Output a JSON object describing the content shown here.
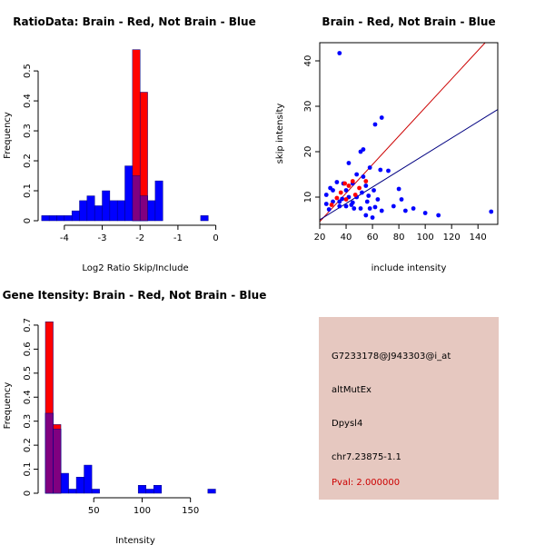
{
  "chart_data": [
    {
      "id": "ratio",
      "type": "bar",
      "title": "RatioData: Brain - Red, Not Brain - Blue",
      "xlabel": "Log2 Ratio Skip/Include",
      "ylabel": "Frequency",
      "xlim": [
        -4.5,
        0.25
      ],
      "ylim": [
        0,
        0.57
      ],
      "xticks": [
        -4,
        -3,
        -2,
        -1,
        0
      ],
      "yticks": [
        0,
        0.1,
        0.2,
        0.3,
        0.4,
        0.5
      ],
      "binwidth": 0.2,
      "series": [
        {
          "name": "Not Brain",
          "color": "#0000ff",
          "bins": [
            [
              -4.4,
              0.017
            ],
            [
              -4.2,
              0.017
            ],
            [
              -4.0,
              0.017
            ],
            [
              -3.8,
              0.017
            ],
            [
              -3.6,
              0.033
            ],
            [
              -3.4,
              0.067
            ],
            [
              -3.2,
              0.083
            ],
            [
              -3.0,
              0.05
            ],
            [
              -2.8,
              0.1
            ],
            [
              -2.6,
              0.067
            ],
            [
              -2.4,
              0.067
            ],
            [
              -2.2,
              0.183
            ],
            [
              -2.0,
              0.15
            ],
            [
              -1.8,
              0.083
            ],
            [
              -1.6,
              0.067
            ],
            [
              -1.4,
              0.133
            ],
            [
              -1.2,
              0.0
            ],
            [
              -1.0,
              0.0
            ],
            [
              -0.2,
              0.017
            ]
          ]
        },
        {
          "name": "Brain",
          "color": "#ff0000",
          "bins": [
            [
              -2.0,
              0.571
            ],
            [
              -1.8,
              0.429
            ]
          ]
        }
      ]
    },
    {
      "id": "scatter",
      "type": "scatter",
      "title": "Brain - Red, Not Brain - Blue",
      "xlabel": "include intensity",
      "ylabel": "skip intensity",
      "xlim": [
        20,
        155
      ],
      "ylim": [
        4,
        44
      ],
      "xticks": [
        20,
        40,
        60,
        80,
        100,
        120,
        140
      ],
      "yticks": [
        10,
        20,
        30,
        40
      ],
      "lines": [
        {
          "name": "Brain fit",
          "color": "#cc0000",
          "from": [
            20,
            4.6
          ],
          "to": [
            155,
            47
          ]
        },
        {
          "name": "Not Brain fit",
          "color": "#000080",
          "from": [
            20,
            5
          ],
          "to": [
            155,
            29.3
          ]
        }
      ],
      "series": [
        {
          "name": "Brain",
          "color": "#ff0000",
          "points": [
            [
              29,
              8.3
            ],
            [
              33,
              9.8
            ],
            [
              36,
              11
            ],
            [
              39,
              13
            ],
            [
              42,
              12.5
            ],
            [
              45,
              13.5
            ],
            [
              50,
              12
            ],
            [
              55,
              13.5
            ],
            [
              40,
              9.5
            ],
            [
              47,
              10.5
            ]
          ]
        },
        {
          "name": "Not Brain",
          "color": "#0000ff",
          "points": [
            [
              35,
              41.7
            ],
            [
              67,
              27.5
            ],
            [
              62,
              26
            ],
            [
              53,
              20.5
            ],
            [
              51,
              20
            ],
            [
              42,
              17.5
            ],
            [
              58,
              16.5
            ],
            [
              66,
              16
            ],
            [
              72,
              15.8
            ],
            [
              48,
              15
            ],
            [
              53,
              14.5
            ],
            [
              33,
              13.3
            ],
            [
              45,
              13
            ],
            [
              38,
              13
            ],
            [
              55,
              12.5
            ],
            [
              28,
              12
            ],
            [
              30,
              11.5
            ],
            [
              40,
              11.5
            ],
            [
              61,
              11.5
            ],
            [
              80,
              11.8
            ],
            [
              25,
              10.5
            ],
            [
              42,
              10
            ],
            [
              48,
              10
            ],
            [
              64,
              9.5
            ],
            [
              30,
              9
            ],
            [
              35,
              9
            ],
            [
              45,
              8.8
            ],
            [
              56,
              9
            ],
            [
              82,
              9.5
            ],
            [
              25,
              8.5
            ],
            [
              35,
              8
            ],
            [
              40,
              8
            ],
            [
              46,
              7.5
            ],
            [
              51,
              7.5
            ],
            [
              58,
              7.5
            ],
            [
              62,
              7.8
            ],
            [
              67,
              7
            ],
            [
              76,
              8
            ],
            [
              85,
              7
            ],
            [
              91,
              7.5
            ],
            [
              100,
              6.5
            ],
            [
              27,
              7.3
            ],
            [
              55,
              6
            ],
            [
              60,
              5.5
            ],
            [
              110,
              6
            ],
            [
              150,
              6.8
            ],
            [
              44,
              8.3
            ],
            [
              37,
              9.6
            ],
            [
              52,
              11
            ],
            [
              57,
              10.3
            ]
          ]
        }
      ]
    },
    {
      "id": "intensity",
      "type": "bar",
      "title": "Gene Itensity: Brain - Red, Not Brain - Blue",
      "xlabel": "Intensity",
      "ylabel": "Frequency",
      "xlim": [
        0,
        186
      ],
      "ylim": [
        0,
        0.73
      ],
      "xticks": [
        50,
        100,
        150
      ],
      "yticks": [
        0,
        0.1,
        0.2,
        0.3,
        0.4,
        0.5,
        0.6,
        0.7
      ],
      "binwidth": 8,
      "series": [
        {
          "name": "Not Brain",
          "color": "#0000ff",
          "bins": [
            [
              8,
              0.333
            ],
            [
              16,
              0.267
            ],
            [
              24,
              0.083
            ],
            [
              32,
              0.017
            ],
            [
              40,
              0.067
            ],
            [
              48,
              0.117
            ],
            [
              56,
              0.017
            ],
            [
              104,
              0.033
            ],
            [
              112,
              0.017
            ],
            [
              120,
              0.033
            ],
            [
              176,
              0.017
            ]
          ]
        },
        {
          "name": "Brain",
          "color": "#ff0000",
          "bins": [
            [
              8,
              0.714
            ],
            [
              16,
              0.286
            ]
          ]
        }
      ]
    }
  ],
  "info": {
    "probe_id": "G7233178@J943303@i_at",
    "event_type": "altMutEx",
    "gene": "Dpysl4",
    "location": "chr7.23875-1.1",
    "pval": "Pval: 2.000000"
  }
}
